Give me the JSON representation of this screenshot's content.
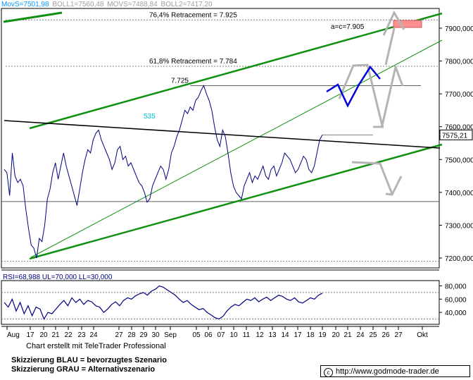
{
  "indicators": [
    {
      "label": "MovS=7501,98",
      "color": "#0099ff"
    },
    {
      "label": "BOLL1=7560,48",
      "color": "#a0a0a0"
    },
    {
      "label": "MOVS=7488,84",
      "color": "#a0a0a0"
    },
    {
      "label": "BOLL2=7417,20",
      "color": "#a0a0a0"
    }
  ],
  "rsi_label": "RSI=68,988 UL=70,000 LL=30,000",
  "credit": "Chart erstellt mit TeleTrader Professional",
  "legend": {
    "blue": "Skizzierung BLAU = bevorzugtes Szenario",
    "grey": "Skizzierung GRAU = Alternativszenario"
  },
  "website": {
    "icon": "copyright-icon",
    "icon_glyph": "c",
    "url": "http://www.godmode-trader.de"
  },
  "chart_data": [
    {
      "type": "line",
      "title": "",
      "y_unit_suffix": ",000",
      "ylim": [
        7170,
        7960
      ],
      "y_ticks": [
        7200,
        7300,
        7400,
        7500,
        7600,
        7700,
        7800,
        7900
      ],
      "y_tick_labels": [
        "7200,000",
        "7300,000",
        "7400,000",
        "7500,000",
        "7600,000",
        "7700,000",
        "7800,000",
        "7900,000"
      ],
      "x_ticks": [
        "Aug",
        "17",
        "20",
        "21",
        "22",
        "23",
        "24",
        "27",
        "28",
        "29",
        "30",
        "Sep",
        "05",
        "06",
        "07",
        "10",
        "11",
        "12",
        "13",
        "14",
        "17",
        "18",
        "19",
        "20",
        "21",
        "24",
        "25",
        "26",
        "27",
        "Okt"
      ],
      "last_price_label": "7575,21",
      "grid": true,
      "colors": {
        "price": "#000080",
        "trend_green": "#109010",
        "resistance": "#000000",
        "retracement": "#808080",
        "scenario_blue": "#0000dd",
        "scenario_grey": "#b4b4b4",
        "target_box": "#ff9090",
        "annotation_cyan": "#00c0d0"
      },
      "price_series": [
        [
          0,
          7470
        ],
        [
          1,
          7460
        ],
        [
          2,
          7390
        ],
        [
          3,
          7520
        ],
        [
          4,
          7450
        ],
        [
          5,
          7430
        ],
        [
          6,
          7440
        ],
        [
          7,
          7420
        ],
        [
          8,
          7350
        ],
        [
          9,
          7290
        ],
        [
          10,
          7240
        ],
        [
          11,
          7230
        ],
        [
          12,
          7200
        ],
        [
          13,
          7260
        ],
        [
          14,
          7250
        ],
        [
          15,
          7300
        ],
        [
          16,
          7380
        ],
        [
          17,
          7410
        ],
        [
          18,
          7460
        ],
        [
          19,
          7490
        ],
        [
          20,
          7440
        ],
        [
          21,
          7480
        ],
        [
          22,
          7520
        ],
        [
          23,
          7480
        ],
        [
          24,
          7450
        ],
        [
          25,
          7420
        ],
        [
          26,
          7390
        ],
        [
          27,
          7360
        ],
        [
          28,
          7410
        ],
        [
          29,
          7460
        ],
        [
          30,
          7500
        ],
        [
          31,
          7530
        ],
        [
          32,
          7520
        ],
        [
          33,
          7560
        ],
        [
          34,
          7580
        ],
        [
          35,
          7590
        ],
        [
          36,
          7560
        ],
        [
          37,
          7540
        ],
        [
          38,
          7520
        ],
        [
          39,
          7500
        ],
        [
          40,
          7470
        ],
        [
          41,
          7490
        ],
        [
          42,
          7530
        ],
        [
          43,
          7540
        ],
        [
          44,
          7500
        ],
        [
          45,
          7510
        ],
        [
          46,
          7480
        ],
        [
          47,
          7490
        ],
        [
          48,
          7470
        ],
        [
          49,
          7450
        ],
        [
          50,
          7430
        ],
        [
          51,
          7420
        ],
        [
          52,
          7400
        ],
        [
          53,
          7370
        ],
        [
          54,
          7380
        ],
        [
          55,
          7420
        ],
        [
          56,
          7440
        ],
        [
          57,
          7460
        ],
        [
          58,
          7480
        ],
        [
          59,
          7470
        ],
        [
          60,
          7440
        ],
        [
          61,
          7470
        ],
        [
          62,
          7520
        ],
        [
          63,
          7540
        ],
        [
          64,
          7570
        ],
        [
          65,
          7590
        ],
        [
          66,
          7620
        ],
        [
          67,
          7650
        ],
        [
          68,
          7640
        ],
        [
          69,
          7660
        ],
        [
          70,
          7650
        ],
        [
          71,
          7680
        ],
        [
          72,
          7690
        ],
        [
          73,
          7710
        ],
        [
          74,
          7725
        ],
        [
          75,
          7700
        ],
        [
          76,
          7680
        ],
        [
          77,
          7650
        ],
        [
          78,
          7600
        ],
        [
          79,
          7560
        ],
        [
          80,
          7540
        ],
        [
          81,
          7590
        ],
        [
          82,
          7570
        ],
        [
          83,
          7520
        ],
        [
          84,
          7460
        ],
        [
          85,
          7420
        ],
        [
          86,
          7400
        ],
        [
          87,
          7390
        ],
        [
          88,
          7380
        ],
        [
          89,
          7420
        ],
        [
          90,
          7440
        ],
        [
          91,
          7460
        ],
        [
          92,
          7430
        ],
        [
          93,
          7450
        ],
        [
          94,
          7440
        ],
        [
          95,
          7460
        ],
        [
          96,
          7480
        ],
        [
          97,
          7450
        ],
        [
          98,
          7440
        ],
        [
          99,
          7470
        ],
        [
          100,
          7480
        ],
        [
          101,
          7450
        ],
        [
          102,
          7470
        ],
        [
          103,
          7490
        ],
        [
          104,
          7520
        ],
        [
          105,
          7510
        ],
        [
          106,
          7500
        ],
        [
          107,
          7480
        ],
        [
          108,
          7460
        ],
        [
          109,
          7470
        ],
        [
          110,
          7490
        ],
        [
          111,
          7510
        ],
        [
          112,
          7500
        ],
        [
          113,
          7470
        ],
        [
          114,
          7460
        ],
        [
          115,
          7480
        ],
        [
          116,
          7520
        ],
        [
          117,
          7560
        ],
        [
          118,
          7575
        ]
      ],
      "lines": [
        {
          "label": "76,4% Retracement = 7.925",
          "y": 7925,
          "style": "dotted"
        },
        {
          "label": "61,8% Retracement = 7.784",
          "y": 7784,
          "style": "dotted"
        },
        {
          "label": "7.725",
          "y": 7725,
          "style": "solid"
        },
        {
          "label": "",
          "y": 7372,
          "style": "solid"
        },
        {
          "label": "",
          "y": 7190,
          "style": "dotted"
        }
      ],
      "annotations": [
        "a=c=7.905",
        "535"
      ]
    },
    {
      "type": "line",
      "title": "RSI",
      "ylim": [
        22,
        88
      ],
      "y_ticks": [
        40,
        60,
        80
      ],
      "y_tick_labels": [
        "40,000",
        "60,000",
        "80,000"
      ],
      "upper_level": 70,
      "lower_level": 30,
      "last_value": 68.988,
      "rsi_series": [
        [
          0,
          55
        ],
        [
          1,
          48
        ],
        [
          2,
          60
        ],
        [
          3,
          42
        ],
        [
          4,
          55
        ],
        [
          5,
          38
        ],
        [
          6,
          50
        ],
        [
          7,
          35
        ],
        [
          8,
          48
        ],
        [
          9,
          45
        ],
        [
          10,
          30
        ],
        [
          11,
          40
        ],
        [
          12,
          38
        ],
        [
          13,
          45
        ],
        [
          14,
          52
        ],
        [
          15,
          58
        ],
        [
          16,
          50
        ],
        [
          17,
          62
        ],
        [
          18,
          55
        ],
        [
          19,
          60
        ],
        [
          20,
          52
        ],
        [
          21,
          58
        ],
        [
          22,
          56
        ],
        [
          23,
          50
        ],
        [
          24,
          48
        ],
        [
          25,
          40
        ],
        [
          26,
          45
        ],
        [
          27,
          52
        ],
        [
          28,
          56
        ],
        [
          29,
          50
        ],
        [
          30,
          58
        ],
        [
          31,
          62
        ],
        [
          32,
          60
        ],
        [
          33,
          65
        ],
        [
          34,
          68
        ],
        [
          35,
          70
        ],
        [
          36,
          66
        ],
        [
          37,
          72
        ],
        [
          38,
          75
        ],
        [
          39,
          80
        ],
        [
          40,
          78
        ],
        [
          41,
          74
        ],
        [
          42,
          70
        ],
        [
          43,
          66
        ],
        [
          44,
          60
        ],
        [
          45,
          55
        ],
        [
          46,
          58
        ],
        [
          47,
          52
        ],
        [
          48,
          48
        ],
        [
          49,
          44
        ],
        [
          50,
          46
        ],
        [
          51,
          40
        ],
        [
          52,
          36
        ],
        [
          53,
          32
        ],
        [
          54,
          30
        ],
        [
          55,
          34
        ],
        [
          56,
          42
        ],
        [
          57,
          48
        ],
        [
          58,
          52
        ],
        [
          59,
          50
        ],
        [
          60,
          55
        ],
        [
          61,
          60
        ],
        [
          62,
          58
        ],
        [
          63,
          62
        ],
        [
          64,
          56
        ],
        [
          65,
          60
        ],
        [
          66,
          63
        ],
        [
          67,
          58
        ],
        [
          68,
          62
        ],
        [
          69,
          66
        ],
        [
          70,
          64
        ],
        [
          71,
          60
        ],
        [
          72,
          58
        ],
        [
          73,
          62
        ],
        [
          74,
          56
        ],
        [
          75,
          54
        ],
        [
          76,
          58
        ],
        [
          77,
          62
        ],
        [
          78,
          60
        ],
        [
          79,
          66
        ],
        [
          80,
          69
        ]
      ]
    }
  ]
}
